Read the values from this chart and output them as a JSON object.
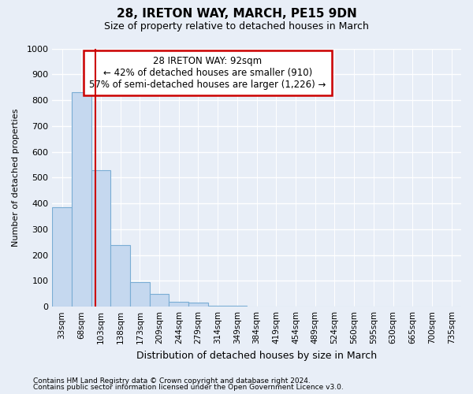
{
  "title": "28, IRETON WAY, MARCH, PE15 9DN",
  "subtitle": "Size of property relative to detached houses in March",
  "xlabel": "Distribution of detached houses by size in March",
  "ylabel": "Number of detached properties",
  "categories": [
    "33sqm",
    "68sqm",
    "103sqm",
    "138sqm",
    "173sqm",
    "209sqm",
    "244sqm",
    "279sqm",
    "314sqm",
    "349sqm",
    "384sqm",
    "419sqm",
    "454sqm",
    "489sqm",
    "524sqm",
    "560sqm",
    "595sqm",
    "630sqm",
    "665sqm",
    "700sqm",
    "735sqm"
  ],
  "values": [
    385,
    830,
    530,
    240,
    95,
    50,
    20,
    15,
    5,
    5,
    2,
    0,
    0,
    0,
    0,
    0,
    0,
    0,
    0,
    0,
    0
  ],
  "bar_color": "#c5d8ef",
  "bar_edge_color": "#7aadd4",
  "red_line_x": 2.0,
  "annotation_text_line1": "28 IRETON WAY: 92sqm",
  "annotation_text_line2": "← 42% of detached houses are smaller (910)",
  "annotation_text_line3": "57% of semi-detached houses are larger (1,226) →",
  "annotation_box_color": "#ffffff",
  "annotation_box_edge": "#cc0000",
  "ylim": [
    0,
    1000
  ],
  "yticks": [
    0,
    100,
    200,
    300,
    400,
    500,
    600,
    700,
    800,
    900,
    1000
  ],
  "footer_line1": "Contains HM Land Registry data © Crown copyright and database right 2024.",
  "footer_line2": "Contains public sector information licensed under the Open Government Licence v3.0.",
  "background_color": "#e8eef7",
  "grid_color": "#ffffff",
  "title_fontsize": 11,
  "subtitle_fontsize": 9
}
